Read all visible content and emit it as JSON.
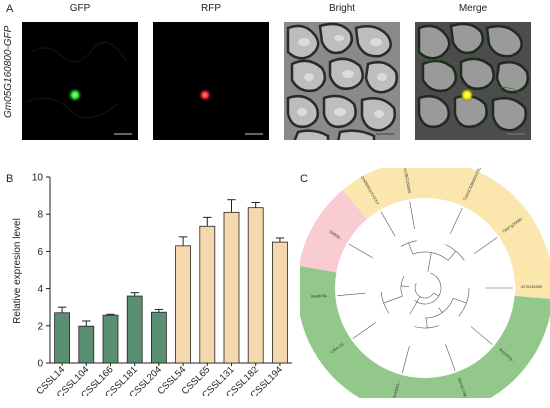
{
  "panels": {
    "a": "A",
    "b": "B",
    "c": "C"
  },
  "microscopy": {
    "row_label": "Gm05G160800-GFP",
    "columns": [
      "GFP",
      "RFP",
      "Bright",
      "Merge"
    ],
    "colors": {
      "gfp": "#2ee82e",
      "rfp": "#ff2a2a",
      "merge": "#f5f000"
    }
  },
  "chart_data": {
    "type": "bar",
    "ylabel": "Relative expresion level",
    "xlabel": "",
    "ylim": [
      0,
      10
    ],
    "yticks": [
      0,
      2,
      4,
      6,
      8,
      10
    ],
    "categories": [
      "CSSL14",
      "CSSL104",
      "CSSL166",
      "CSSL181",
      "CSSL204",
      "CSSL54",
      "CSSL65",
      "CSSL131",
      "CSSL182",
      "CSSL194"
    ],
    "values": [
      2.7,
      1.98,
      2.57,
      3.6,
      2.73,
      6.3,
      7.35,
      8.1,
      8.35,
      6.5
    ],
    "errors": [
      0.3,
      0.28,
      0.05,
      0.18,
      0.15,
      0.48,
      0.48,
      0.68,
      0.28,
      0.22
    ],
    "bar_colors": [
      "#5a8f72",
      "#5a8f72",
      "#5a8f72",
      "#5a8f72",
      "#5a8f72",
      "#f6d8ae",
      "#f6d8ae",
      "#f6d8ae",
      "#f6d8ae",
      "#f6d8ae"
    ]
  },
  "tree": {
    "sector_colors": {
      "yellow": "#fbe7ae",
      "pink": "#f8ccd0",
      "green": "#93c88b"
    },
    "labels": [
      "Zm00001eXXXXX",
      "Glyma.05G160800",
      "TraesCS3B02G225100",
      "Os07g26680",
      "AT2G34930",
      "Solyc01g...",
      "Glyma.13g...",
      "GSVIVG01...",
      "LjGm.Gl...",
      "Medtr3g...",
      "Sb02g..."
    ]
  }
}
